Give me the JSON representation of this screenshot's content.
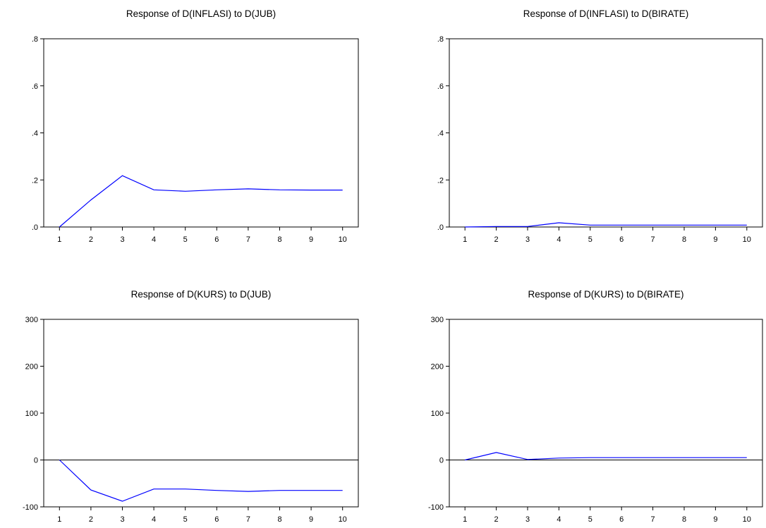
{
  "colors": {
    "series": "#0000ff",
    "axis": "#000000",
    "background": "#ffffff"
  },
  "chart_data": [
    {
      "type": "line",
      "title": "Response of D(INFLASI) to D(JUB)",
      "xlabel": "",
      "ylabel": "",
      "x": [
        1,
        2,
        3,
        4,
        5,
        6,
        7,
        8,
        9,
        10
      ],
      "xlim": [
        0.5,
        10.5
      ],
      "ylim": [
        0,
        0.8
      ],
      "yticks": [
        0,
        0.2,
        0.4,
        0.6,
        0.8
      ],
      "ytick_labels": [
        ".0",
        ".2",
        ".4",
        ".6",
        ".8"
      ],
      "xtick_labels": [
        "1",
        "2",
        "3",
        "4",
        "5",
        "6",
        "7",
        "8",
        "9",
        "10"
      ],
      "zero_line": false,
      "grid": false,
      "series": [
        {
          "values": [
            0.0,
            0.115,
            0.218,
            0.158,
            0.152,
            0.158,
            0.162,
            0.158,
            0.157,
            0.157
          ]
        }
      ]
    },
    {
      "type": "line",
      "title": "Response of D(INFLASI) to D(BIRATE)",
      "xlabel": "",
      "ylabel": "",
      "x": [
        1,
        2,
        3,
        4,
        5,
        6,
        7,
        8,
        9,
        10
      ],
      "xlim": [
        0.5,
        10.5
      ],
      "ylim": [
        0,
        0.8
      ],
      "yticks": [
        0,
        0.2,
        0.4,
        0.6,
        0.8
      ],
      "ytick_labels": [
        ".0",
        ".2",
        ".4",
        ".6",
        ".8"
      ],
      "xtick_labels": [
        "1",
        "2",
        "3",
        "4",
        "5",
        "6",
        "7",
        "8",
        "9",
        "10"
      ],
      "zero_line": false,
      "grid": false,
      "series": [
        {
          "values": [
            0.0,
            0.002,
            0.002,
            0.018,
            0.008,
            0.008,
            0.008,
            0.008,
            0.008,
            0.008
          ]
        }
      ]
    },
    {
      "type": "line",
      "title": "Response of D(KURS) to D(JUB)",
      "xlabel": "",
      "ylabel": "",
      "x": [
        1,
        2,
        3,
        4,
        5,
        6,
        7,
        8,
        9,
        10
      ],
      "xlim": [
        0.5,
        10.5
      ],
      "ylim": [
        -100,
        300
      ],
      "yticks": [
        -100,
        0,
        100,
        200,
        300
      ],
      "ytick_labels": [
        "-100",
        "0",
        "100",
        "200",
        "300"
      ],
      "xtick_labels": [
        "1",
        "2",
        "3",
        "4",
        "5",
        "6",
        "7",
        "8",
        "9",
        "10"
      ],
      "zero_line": true,
      "grid": false,
      "series": [
        {
          "values": [
            0,
            -64,
            -88,
            -62,
            -62,
            -65,
            -67,
            -65,
            -65,
            -65
          ]
        }
      ]
    },
    {
      "type": "line",
      "title": "Response of D(KURS) to D(BIRATE)",
      "xlabel": "",
      "ylabel": "",
      "x": [
        1,
        2,
        3,
        4,
        5,
        6,
        7,
        8,
        9,
        10
      ],
      "xlim": [
        0.5,
        10.5
      ],
      "ylim": [
        -100,
        300
      ],
      "yticks": [
        -100,
        0,
        100,
        200,
        300
      ],
      "ytick_labels": [
        "-100",
        "0",
        "100",
        "200",
        "300"
      ],
      "xtick_labels": [
        "1",
        "2",
        "3",
        "4",
        "5",
        "6",
        "7",
        "8",
        "9",
        "10"
      ],
      "zero_line": true,
      "grid": false,
      "series": [
        {
          "values": [
            0,
            16,
            1,
            4,
            5,
            5,
            5,
            5,
            5,
            5
          ]
        }
      ]
    }
  ]
}
